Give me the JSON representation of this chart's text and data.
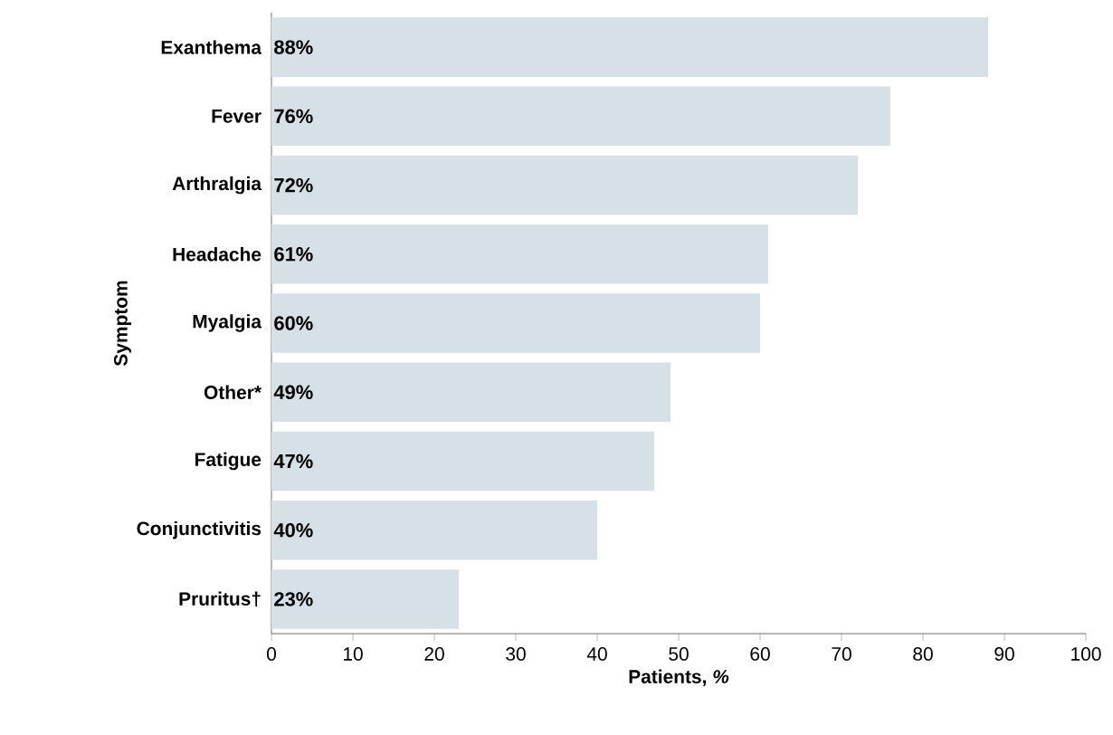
{
  "chart_data": {
    "type": "bar",
    "orientation": "horizontal",
    "xlabel": "Patients, *%*",
    "ylabel": "Symptom",
    "categories": [
      "Exanthema",
      "Fever",
      "Arthralgia",
      "Headache",
      "Myalgia",
      "Other*",
      "Fatigue",
      "Conjunctivitis",
      "Pruritus†"
    ],
    "values": [
      88,
      76,
      72,
      61,
      60,
      49,
      47,
      40,
      23
    ],
    "value_labels": [
      "88%",
      "76%",
      "72%",
      "61%",
      "60%",
      "49%",
      "47%",
      "40%",
      "23%"
    ],
    "color": "#d5e1e7",
    "xlim": [
      0,
      100
    ],
    "xticks": [
      0,
      10,
      20,
      30,
      40,
      50,
      60,
      70,
      80,
      90,
      100
    ],
    "grid": false
  }
}
